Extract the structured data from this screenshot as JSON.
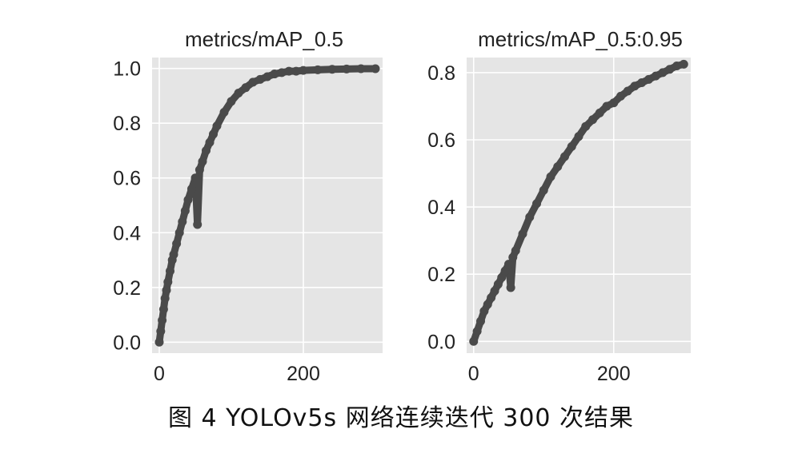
{
  "caption": "图 4   YOLOv5s 网络连续迭代 300 次结果",
  "chart_data": [
    {
      "type": "scatter",
      "title": "metrics/mAP_0.5",
      "xlabel": "",
      "ylabel": "",
      "xlim": [
        -10,
        310
      ],
      "ylim": [
        -0.04,
        1.04
      ],
      "x_ticks": [
        0,
        200
      ],
      "y_ticks": [
        0.0,
        0.2,
        0.4,
        0.6,
        0.8,
        1.0
      ],
      "y_tick_labels": [
        "0.0",
        "0.2",
        "0.4",
        "0.6",
        "0.8",
        "1.0"
      ],
      "x_tick_labels": [
        "0",
        "200"
      ],
      "grid": true,
      "background": "#e5e5e5",
      "marker_color": "#4a4a4a",
      "series": [
        {
          "x": [
            0,
            2,
            4,
            6,
            8,
            10,
            12,
            15,
            18,
            20,
            24,
            28,
            32,
            36,
            40,
            45,
            50,
            53,
            56,
            60,
            65,
            70,
            75,
            80,
            90,
            100,
            110,
            120,
            130,
            140,
            150,
            160,
            170,
            180,
            190,
            200,
            220,
            240,
            260,
            280,
            300
          ],
          "y": [
            0.0,
            0.04,
            0.08,
            0.12,
            0.16,
            0.19,
            0.22,
            0.26,
            0.3,
            0.32,
            0.36,
            0.4,
            0.44,
            0.48,
            0.52,
            0.56,
            0.6,
            0.43,
            0.63,
            0.66,
            0.7,
            0.73,
            0.76,
            0.79,
            0.84,
            0.88,
            0.91,
            0.93,
            0.95,
            0.96,
            0.97,
            0.98,
            0.985,
            0.99,
            0.99,
            0.993,
            0.995,
            0.997,
            0.998,
            0.999,
            0.999
          ]
        }
      ]
    },
    {
      "type": "scatter",
      "title": "metrics/mAP_0.5:0.95",
      "xlabel": "",
      "ylabel": "",
      "xlim": [
        -10,
        310
      ],
      "ylim": [
        -0.035,
        0.845
      ],
      "x_ticks": [
        0,
        200
      ],
      "y_ticks": [
        0.0,
        0.2,
        0.4,
        0.6,
        0.8
      ],
      "y_tick_labels": [
        "0.0",
        "0.2",
        "0.4",
        "0.6",
        "0.8"
      ],
      "x_tick_labels": [
        "0",
        "200"
      ],
      "grid": true,
      "background": "#e5e5e5",
      "marker_color": "#4a4a4a",
      "series": [
        {
          "x": [
            0,
            5,
            10,
            15,
            20,
            25,
            30,
            35,
            40,
            45,
            50,
            53,
            56,
            60,
            70,
            80,
            90,
            100,
            110,
            120,
            130,
            140,
            150,
            160,
            170,
            180,
            190,
            200,
            210,
            220,
            230,
            240,
            250,
            260,
            270,
            280,
            290,
            300
          ],
          "y": [
            0.0,
            0.03,
            0.06,
            0.09,
            0.11,
            0.13,
            0.15,
            0.17,
            0.19,
            0.21,
            0.23,
            0.16,
            0.25,
            0.27,
            0.32,
            0.37,
            0.41,
            0.45,
            0.49,
            0.52,
            0.55,
            0.58,
            0.61,
            0.64,
            0.66,
            0.68,
            0.7,
            0.71,
            0.73,
            0.745,
            0.76,
            0.77,
            0.78,
            0.79,
            0.8,
            0.81,
            0.82,
            0.825
          ]
        }
      ]
    }
  ]
}
